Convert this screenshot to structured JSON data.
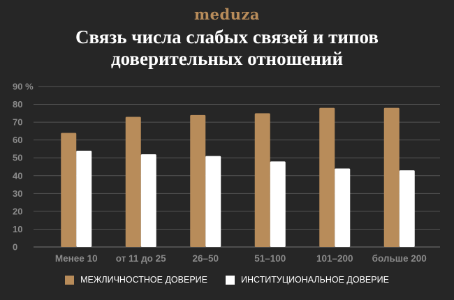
{
  "logo": "meduza",
  "chart_data": {
    "type": "bar",
    "title": "Связь числа слабых связей и типов доверительных отношений",
    "categories": [
      "Менее 10",
      "от 11 до 25",
      "26–50",
      "51–100",
      "101–200",
      "больше 200"
    ],
    "series": [
      {
        "name": "МЕЖЛИЧНОСТНОЕ ДОВЕРИЕ",
        "color": "#b88c5a",
        "values": [
          64,
          73,
          74,
          75,
          78,
          78
        ]
      },
      {
        "name": "ИНСТИТУЦИОНАЛЬНОЕ ДОВЕРИЕ",
        "color": "#ffffff",
        "values": [
          54,
          52,
          51,
          48,
          44,
          43
        ]
      }
    ],
    "ylim": [
      0,
      90
    ],
    "yticks": [
      "0",
      "10",
      "20",
      "30",
      "40",
      "50",
      "60",
      "70",
      "80",
      "90 %"
    ],
    "xlabel": "",
    "ylabel": "",
    "grid": true,
    "legend": "bottom"
  }
}
